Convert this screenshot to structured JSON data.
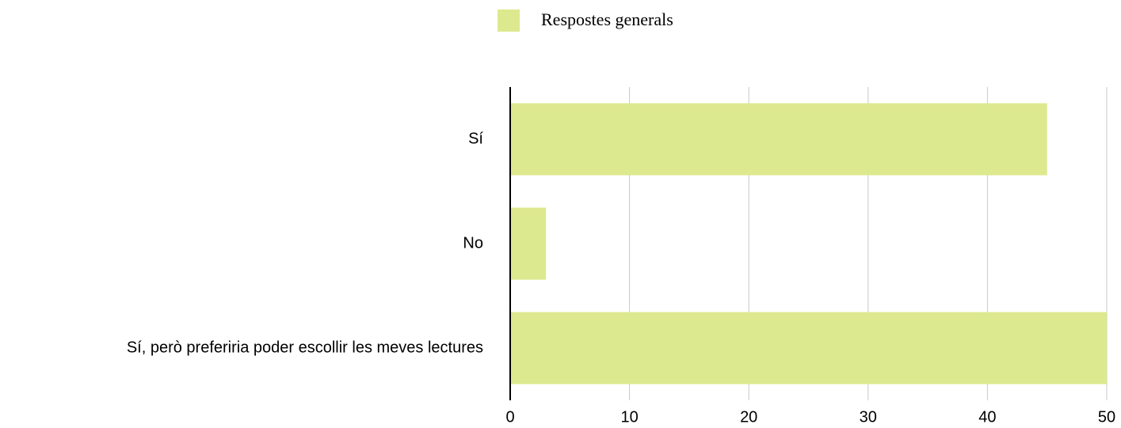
{
  "chart_data": {
    "type": "barh",
    "categories": [
      "Sí",
      "No",
      "Sí, però preferiria poder escollir les meves lectures"
    ],
    "series": [
      {
        "name": "Respostes generals",
        "color": "#dde98e",
        "values": [
          45,
          3,
          50
        ]
      }
    ],
    "xlim": [
      0,
      50
    ],
    "xticks": [
      0,
      10,
      20,
      30,
      40,
      50
    ],
    "grid": true,
    "legend": "top"
  }
}
